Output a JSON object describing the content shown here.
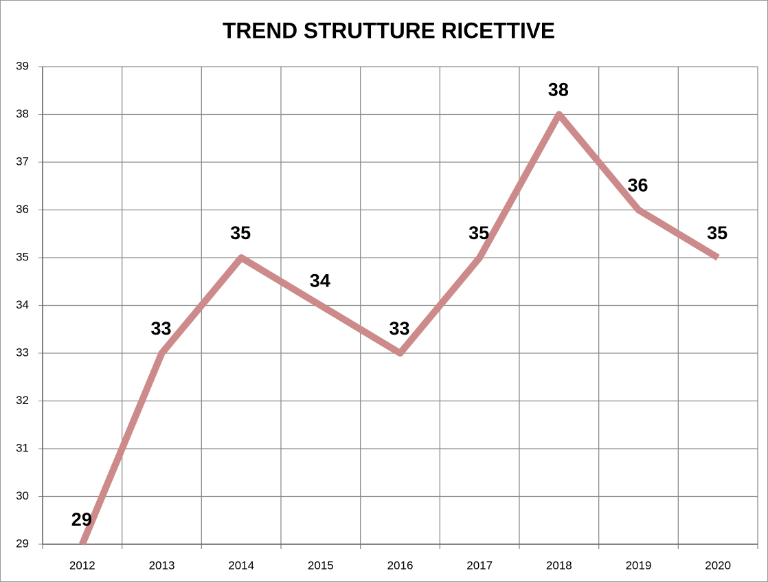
{
  "chart_data": {
    "type": "line",
    "title": "TREND STRUTTURE RICETTIVE",
    "categories": [
      "2012",
      "2013",
      "2014",
      "2015",
      "2016",
      "2017",
      "2018",
      "2019",
      "2020"
    ],
    "series": [
      {
        "name": "Strutture ricettive",
        "color": "#cd8a8a",
        "values": [
          29,
          33,
          35,
          34,
          33,
          35,
          38,
          36,
          35
        ]
      }
    ],
    "ylim": [
      29,
      39
    ],
    "yticks": [
      29,
      30,
      31,
      32,
      33,
      34,
      35,
      36,
      37,
      38,
      39
    ],
    "grid": true
  }
}
